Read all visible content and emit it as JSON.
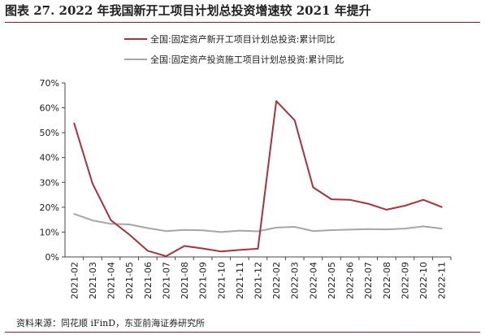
{
  "title": "图表 27. 2022 年我国新开工项目计划总投资增速较 2021 年提升",
  "source": "资料来源：同花顺 iFinD，东亚前海证券研究所",
  "chart_data": {
    "type": "line",
    "title": "图表 27. 2022 年我国新开工项目计划总投资增速较 2021 年提升",
    "xlabel": "",
    "ylabel": "",
    "categories": [
      "2021-02",
      "2021-03",
      "2021-04",
      "2021-05",
      "2021-06",
      "2021-07",
      "2021-08",
      "2021-09",
      "2021-10",
      "2021-11",
      "2021-12",
      "2022-02",
      "2022-03",
      "2022-04",
      "2022-05",
      "2022-06",
      "2022-07",
      "2022-08",
      "2022-09",
      "2022-10",
      "2022-11"
    ],
    "series": [
      {
        "name": "全国:固定资产新开工项目计划总投资:累计同比",
        "color": "#a8323e",
        "values": [
          53.7,
          29.5,
          14.8,
          9.0,
          2.5,
          0.3,
          4.4,
          3.4,
          2.2,
          2.8,
          3.3,
          62.7,
          55.0,
          28.0,
          23.2,
          23.0,
          21.4,
          19.0,
          20.6,
          23.0,
          20.1
        ]
      },
      {
        "name": "全国:固定资产投资施工项目计划总投资:累计同比",
        "color": "#a6a6a6",
        "values": [
          17.3,
          14.7,
          13.3,
          13.1,
          11.6,
          10.4,
          10.9,
          10.7,
          10.0,
          10.6,
          10.3,
          11.8,
          12.1,
          10.4,
          10.8,
          11.0,
          11.2,
          11.1,
          11.4,
          12.3,
          11.4
        ]
      }
    ],
    "ylim": [
      0,
      70
    ],
    "yticks": [
      "0%",
      "10%",
      "20%",
      "30%",
      "40%",
      "50%",
      "60%",
      "70%"
    ],
    "grid": false,
    "legend_position": "top"
  }
}
